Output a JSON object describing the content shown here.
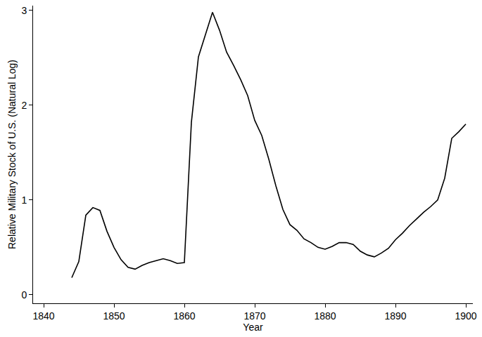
{
  "chart_data": {
    "type": "line",
    "x_label": "Year",
    "y_label": "Relative Military Stock of U.S. (Natural Log)",
    "x": [
      1844,
      1845,
      1846,
      1847,
      1848,
      1849,
      1850,
      1851,
      1852,
      1853,
      1854,
      1855,
      1856,
      1857,
      1858,
      1859,
      1860,
      1861,
      1862,
      1863,
      1864,
      1865,
      1866,
      1867,
      1868,
      1869,
      1870,
      1871,
      1872,
      1873,
      1874,
      1875,
      1876,
      1877,
      1878,
      1879,
      1880,
      1881,
      1882,
      1883,
      1884,
      1885,
      1886,
      1887,
      1888,
      1889,
      1890,
      1891,
      1892,
      1893,
      1894,
      1895,
      1896,
      1897,
      1898,
      1899,
      1900
    ],
    "values": [
      0.18,
      0.35,
      0.84,
      0.92,
      0.89,
      0.67,
      0.5,
      0.37,
      0.29,
      0.27,
      0.31,
      0.34,
      0.36,
      0.38,
      0.36,
      0.33,
      0.34,
      1.82,
      2.51,
      2.75,
      2.98,
      2.79,
      2.56,
      2.42,
      2.27,
      2.1,
      1.84,
      1.68,
      1.43,
      1.15,
      0.9,
      0.74,
      0.68,
      0.59,
      0.55,
      0.5,
      0.48,
      0.51,
      0.55,
      0.55,
      0.53,
      0.46,
      0.42,
      0.4,
      0.44,
      0.49,
      0.58,
      0.65,
      0.73,
      0.8,
      0.87,
      0.93,
      1.0,
      1.23,
      1.65,
      1.72,
      1.8
    ],
    "color": "#000000",
    "xlim": [
      1838.5,
      1901
    ],
    "xticks": [
      1840,
      1850,
      1860,
      1870,
      1880,
      1890,
      1900
    ],
    "ylim": [
      -0.09,
      3.05
    ],
    "yticks": [
      0,
      1,
      2,
      3
    ],
    "grid": false
  }
}
